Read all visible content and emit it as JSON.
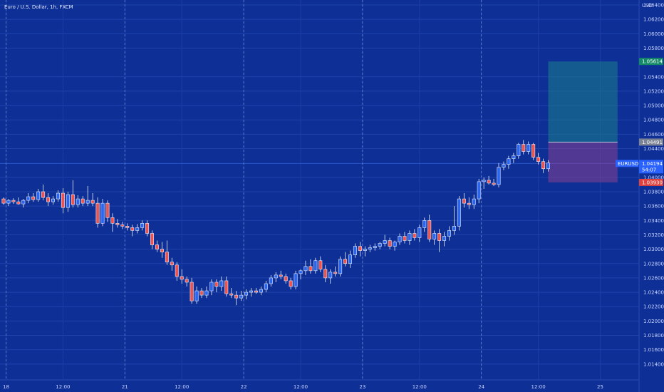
{
  "chart_data": {
    "type": "candlestick",
    "title": "Euro / U.S. Dollar, 1h, FXCM",
    "currency_label": "USD",
    "ylim": [
      1.012,
      1.064
    ],
    "y_ticks": [
      1.014,
      1.016,
      1.018,
      1.02,
      1.022,
      1.024,
      1.026,
      1.028,
      1.03,
      1.032,
      1.034,
      1.036,
      1.038,
      1.04,
      1.044,
      1.046,
      1.048,
      1.05,
      1.052,
      1.054,
      1.058,
      1.06,
      1.062,
      1.064
    ],
    "y_tick_labels": [
      "1.01400",
      "1.01600",
      "1.01800",
      "1.02000",
      "1.02200",
      "1.02400",
      "1.02600",
      "1.02800",
      "1.03000",
      "1.03200",
      "1.03400",
      "1.03600",
      "1.03800",
      "1.04000",
      "1.04400",
      "1.04600",
      "1.04800",
      "1.05000",
      "1.05200",
      "1.05400",
      "1.05800",
      "1.06000",
      "1.06200",
      "1.06400"
    ],
    "x_ticks": [
      "18",
      "12:00",
      "21",
      "12:00",
      "22",
      "12:00",
      "23",
      "12:00",
      "24",
      "12:00",
      "25"
    ],
    "x_tick_positions": [
      0.5,
      12,
      24.5,
      36,
      48.5,
      60,
      72.5,
      84,
      96.5,
      108,
      120.5
    ],
    "day_separators": [
      0.5,
      24.5,
      48.5,
      72.5,
      96.5
    ],
    "bull_color": "#2a66f2",
    "bear_color": "#ef5350",
    "candles": [
      {
        "o": 1.037,
        "h": 1.0372,
        "l": 1.0362,
        "c": 1.0364
      },
      {
        "o": 1.0364,
        "h": 1.037,
        "l": 1.036,
        "c": 1.0368
      },
      {
        "o": 1.0368,
        "h": 1.0371,
        "l": 1.0363,
        "c": 1.0366
      },
      {
        "o": 1.0366,
        "h": 1.0372,
        "l": 1.0362,
        "c": 1.0363
      },
      {
        "o": 1.0363,
        "h": 1.037,
        "l": 1.0358,
        "c": 1.0368
      },
      {
        "o": 1.0368,
        "h": 1.0378,
        "l": 1.0364,
        "c": 1.0373
      },
      {
        "o": 1.0373,
        "h": 1.0378,
        "l": 1.0366,
        "c": 1.0369
      },
      {
        "o": 1.0369,
        "h": 1.0384,
        "l": 1.0366,
        "c": 1.038
      },
      {
        "o": 1.038,
        "h": 1.039,
        "l": 1.0368,
        "c": 1.0372
      },
      {
        "o": 1.0372,
        "h": 1.0378,
        "l": 1.036,
        "c": 1.0366
      },
      {
        "o": 1.0366,
        "h": 1.0374,
        "l": 1.0362,
        "c": 1.037
      },
      {
        "o": 1.037,
        "h": 1.0382,
        "l": 1.0366,
        "c": 1.0378
      },
      {
        "o": 1.0378,
        "h": 1.0385,
        "l": 1.035,
        "c": 1.0358
      },
      {
        "o": 1.0358,
        "h": 1.038,
        "l": 1.0352,
        "c": 1.0376
      },
      {
        "o": 1.0376,
        "h": 1.0396,
        "l": 1.0358,
        "c": 1.0362
      },
      {
        "o": 1.0362,
        "h": 1.0375,
        "l": 1.0358,
        "c": 1.037
      },
      {
        "o": 1.037,
        "h": 1.0374,
        "l": 1.036,
        "c": 1.0364
      },
      {
        "o": 1.0364,
        "h": 1.0388,
        "l": 1.036,
        "c": 1.0368
      },
      {
        "o": 1.0368,
        "h": 1.0378,
        "l": 1.036,
        "c": 1.0364
      },
      {
        "o": 1.0364,
        "h": 1.0372,
        "l": 1.033,
        "c": 1.0336
      },
      {
        "o": 1.0336,
        "h": 1.037,
        "l": 1.0332,
        "c": 1.0364
      },
      {
        "o": 1.0364,
        "h": 1.0368,
        "l": 1.0338,
        "c": 1.0344
      },
      {
        "o": 1.0344,
        "h": 1.035,
        "l": 1.0324,
        "c": 1.0336
      },
      {
        "o": 1.0336,
        "h": 1.0342,
        "l": 1.033,
        "c": 1.0334
      },
      {
        "o": 1.0334,
        "h": 1.0338,
        "l": 1.0328,
        "c": 1.0332
      },
      {
        "o": 1.0332,
        "h": 1.0336,
        "l": 1.0326,
        "c": 1.033
      },
      {
        "o": 1.033,
        "h": 1.0334,
        "l": 1.0318,
        "c": 1.0326
      },
      {
        "o": 1.0326,
        "h": 1.0335,
        "l": 1.0322,
        "c": 1.033
      },
      {
        "o": 1.033,
        "h": 1.034,
        "l": 1.0326,
        "c": 1.0336
      },
      {
        "o": 1.0336,
        "h": 1.034,
        "l": 1.0318,
        "c": 1.0322
      },
      {
        "o": 1.0322,
        "h": 1.0326,
        "l": 1.03,
        "c": 1.0306
      },
      {
        "o": 1.0306,
        "h": 1.0312,
        "l": 1.0296,
        "c": 1.03
      },
      {
        "o": 1.03,
        "h": 1.031,
        "l": 1.0288,
        "c": 1.0296
      },
      {
        "o": 1.0296,
        "h": 1.0312,
        "l": 1.0278,
        "c": 1.0282
      },
      {
        "o": 1.0282,
        "h": 1.0288,
        "l": 1.027,
        "c": 1.0278
      },
      {
        "o": 1.0278,
        "h": 1.0282,
        "l": 1.0256,
        "c": 1.0262
      },
      {
        "o": 1.0262,
        "h": 1.0272,
        "l": 1.0252,
        "c": 1.0258
      },
      {
        "o": 1.0258,
        "h": 1.0262,
        "l": 1.0248,
        "c": 1.0254
      },
      {
        "o": 1.0254,
        "h": 1.026,
        "l": 1.0224,
        "c": 1.0228
      },
      {
        "o": 1.0228,
        "h": 1.0248,
        "l": 1.0224,
        "c": 1.0242
      },
      {
        "o": 1.0242,
        "h": 1.0246,
        "l": 1.0232,
        "c": 1.0236
      },
      {
        "o": 1.0236,
        "h": 1.0248,
        "l": 1.0232,
        "c": 1.0242
      },
      {
        "o": 1.0242,
        "h": 1.0258,
        "l": 1.0236,
        "c": 1.0254
      },
      {
        "o": 1.0254,
        "h": 1.0258,
        "l": 1.024,
        "c": 1.0248
      },
      {
        "o": 1.0248,
        "h": 1.0262,
        "l": 1.0242,
        "c": 1.0256
      },
      {
        "o": 1.0256,
        "h": 1.0262,
        "l": 1.0234,
        "c": 1.0238
      },
      {
        "o": 1.0238,
        "h": 1.0246,
        "l": 1.0232,
        "c": 1.0236
      },
      {
        "o": 1.0236,
        "h": 1.0242,
        "l": 1.0222,
        "c": 1.0232
      },
      {
        "o": 1.0232,
        "h": 1.0242,
        "l": 1.0228,
        "c": 1.0236
      },
      {
        "o": 1.0236,
        "h": 1.0244,
        "l": 1.023,
        "c": 1.024
      },
      {
        "o": 1.024,
        "h": 1.0246,
        "l": 1.0234,
        "c": 1.0242
      },
      {
        "o": 1.0242,
        "h": 1.0246,
        "l": 1.0238,
        "c": 1.024
      },
      {
        "o": 1.024,
        "h": 1.0248,
        "l": 1.0236,
        "c": 1.0244
      },
      {
        "o": 1.0244,
        "h": 1.0256,
        "l": 1.024,
        "c": 1.0252
      },
      {
        "o": 1.0252,
        "h": 1.0264,
        "l": 1.0248,
        "c": 1.026
      },
      {
        "o": 1.026,
        "h": 1.0268,
        "l": 1.0254,
        "c": 1.0264
      },
      {
        "o": 1.0264,
        "h": 1.027,
        "l": 1.0258,
        "c": 1.0262
      },
      {
        "o": 1.0262,
        "h": 1.0266,
        "l": 1.0252,
        "c": 1.0256
      },
      {
        "o": 1.0256,
        "h": 1.026,
        "l": 1.0244,
        "c": 1.0248
      },
      {
        "o": 1.0248,
        "h": 1.027,
        "l": 1.0244,
        "c": 1.0266
      },
      {
        "o": 1.0266,
        "h": 1.0272,
        "l": 1.0258,
        "c": 1.027
      },
      {
        "o": 1.027,
        "h": 1.0284,
        "l": 1.0264,
        "c": 1.0276
      },
      {
        "o": 1.0276,
        "h": 1.0286,
        "l": 1.0266,
        "c": 1.027
      },
      {
        "o": 1.027,
        "h": 1.0288,
        "l": 1.0266,
        "c": 1.0284
      },
      {
        "o": 1.0284,
        "h": 1.029,
        "l": 1.0268,
        "c": 1.0272
      },
      {
        "o": 1.0272,
        "h": 1.0278,
        "l": 1.0254,
        "c": 1.026
      },
      {
        "o": 1.026,
        "h": 1.0272,
        "l": 1.0252,
        "c": 1.0268
      },
      {
        "o": 1.0268,
        "h": 1.0276,
        "l": 1.0262,
        "c": 1.0266
      },
      {
        "o": 1.0266,
        "h": 1.029,
        "l": 1.0262,
        "c": 1.0286
      },
      {
        "o": 1.0286,
        "h": 1.0296,
        "l": 1.0276,
        "c": 1.028
      },
      {
        "o": 1.028,
        "h": 1.0298,
        "l": 1.0274,
        "c": 1.0292
      },
      {
        "o": 1.0292,
        "h": 1.0308,
        "l": 1.0288,
        "c": 1.0304
      },
      {
        "o": 1.0304,
        "h": 1.031,
        "l": 1.029,
        "c": 1.0298
      },
      {
        "o": 1.0298,
        "h": 1.0304,
        "l": 1.029,
        "c": 1.03
      },
      {
        "o": 1.03,
        "h": 1.0306,
        "l": 1.0296,
        "c": 1.0302
      },
      {
        "o": 1.0302,
        "h": 1.0308,
        "l": 1.0298,
        "c": 1.0304
      },
      {
        "o": 1.0304,
        "h": 1.031,
        "l": 1.03,
        "c": 1.0308
      },
      {
        "o": 1.0308,
        "h": 1.032,
        "l": 1.0304,
        "c": 1.0312
      },
      {
        "o": 1.0312,
        "h": 1.0316,
        "l": 1.03,
        "c": 1.0304
      },
      {
        "o": 1.0304,
        "h": 1.0312,
        "l": 1.0298,
        "c": 1.031
      },
      {
        "o": 1.031,
        "h": 1.0322,
        "l": 1.0306,
        "c": 1.0318
      },
      {
        "o": 1.0318,
        "h": 1.0324,
        "l": 1.0308,
        "c": 1.0312
      },
      {
        "o": 1.0312,
        "h": 1.0326,
        "l": 1.0306,
        "c": 1.0322
      },
      {
        "o": 1.0322,
        "h": 1.0328,
        "l": 1.0312,
        "c": 1.0316
      },
      {
        "o": 1.0316,
        "h": 1.0334,
        "l": 1.031,
        "c": 1.033
      },
      {
        "o": 1.033,
        "h": 1.0344,
        "l": 1.0324,
        "c": 1.034
      },
      {
        "o": 1.034,
        "h": 1.0348,
        "l": 1.031,
        "c": 1.0314
      },
      {
        "o": 1.0314,
        "h": 1.0326,
        "l": 1.0306,
        "c": 1.0322
      },
      {
        "o": 1.0322,
        "h": 1.0328,
        "l": 1.0296,
        "c": 1.0312
      },
      {
        "o": 1.0312,
        "h": 1.0324,
        "l": 1.0304,
        "c": 1.0318
      },
      {
        "o": 1.0318,
        "h": 1.0332,
        "l": 1.0312,
        "c": 1.0326
      },
      {
        "o": 1.0326,
        "h": 1.036,
        "l": 1.032,
        "c": 1.0332
      },
      {
        "o": 1.0332,
        "h": 1.0374,
        "l": 1.0326,
        "c": 1.037
      },
      {
        "o": 1.037,
        "h": 1.0378,
        "l": 1.0358,
        "c": 1.0364
      },
      {
        "o": 1.0364,
        "h": 1.0372,
        "l": 1.0356,
        "c": 1.0362
      },
      {
        "o": 1.0362,
        "h": 1.0376,
        "l": 1.0356,
        "c": 1.037
      },
      {
        "o": 1.037,
        "h": 1.0398,
        "l": 1.0364,
        "c": 1.0394
      },
      {
        "o": 1.0394,
        "h": 1.04,
        "l": 1.0384,
        "c": 1.0396
      },
      {
        "o": 1.0396,
        "h": 1.0402,
        "l": 1.039,
        "c": 1.0392
      },
      {
        "o": 1.0392,
        "h": 1.0398,
        "l": 1.0388,
        "c": 1.039
      },
      {
        "o": 1.039,
        "h": 1.042,
        "l": 1.0386,
        "c": 1.0414
      },
      {
        "o": 1.0414,
        "h": 1.0422,
        "l": 1.041,
        "c": 1.0418
      },
      {
        "o": 1.0418,
        "h": 1.043,
        "l": 1.0412,
        "c": 1.0426
      },
      {
        "o": 1.0426,
        "h": 1.0434,
        "l": 1.042,
        "c": 1.043
      },
      {
        "o": 1.043,
        "h": 1.0448,
        "l": 1.0426,
        "c": 1.0446
      },
      {
        "o": 1.0446,
        "h": 1.0452,
        "l": 1.0432,
        "c": 1.0436
      },
      {
        "o": 1.0436,
        "h": 1.045,
        "l": 1.0432,
        "c": 1.0446
      },
      {
        "o": 1.0446,
        "h": 1.0448,
        "l": 1.0424,
        "c": 1.0428
      },
      {
        "o": 1.0428,
        "h": 1.0434,
        "l": 1.0418,
        "c": 1.0422
      },
      {
        "o": 1.0422,
        "h": 1.0426,
        "l": 1.0406,
        "c": 1.0412
      },
      {
        "o": 1.0412,
        "h": 1.0424,
        "l": 1.0408,
        "c": 1.042
      }
    ],
    "position": {
      "type": "long",
      "entry": 1.04491,
      "target": 1.05614,
      "stop": 1.0393,
      "start_index": 110,
      "end_index": 124
    },
    "labels": {
      "target": "1.05614",
      "entry": "1.04491",
      "stop": "1.03930",
      "symbol": "EURUSD",
      "last_price": "1.04194",
      "countdown": "54:07"
    },
    "last_price": 1.04194
  }
}
